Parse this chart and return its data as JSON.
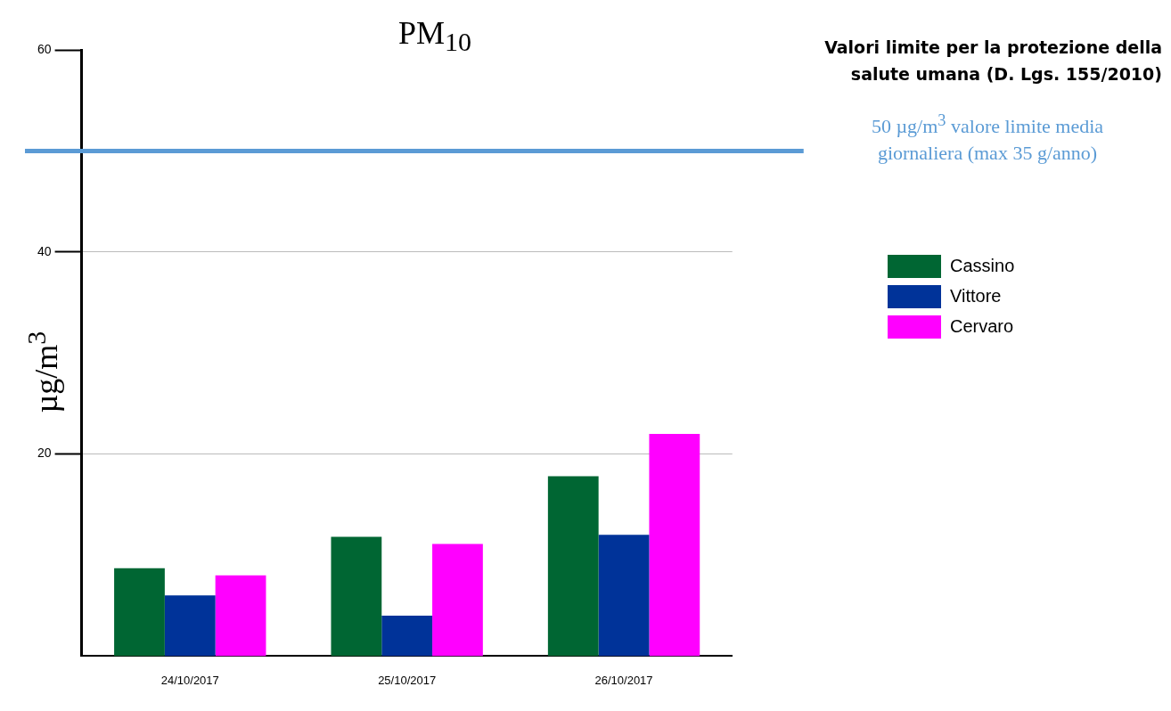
{
  "chart_data": {
    "type": "bar",
    "title": "PM$_{10}$",
    "ylabel": "µg/m$^{3}$",
    "categories": [
      "24/10/2017",
      "25/10/2017",
      "26/10/2017"
    ],
    "series": [
      {
        "name": "Cassino",
        "color": "#006633",
        "values": [
          8.7,
          11.8,
          17.8
        ]
      },
      {
        "name": "Vittore",
        "color": "#003399",
        "values": [
          6.0,
          4.0,
          12.0
        ]
      },
      {
        "name": "Cervaro",
        "color": "#ff00ff",
        "values": [
          8.0,
          11.1,
          22.0
        ]
      }
    ],
    "ylim": [
      0,
      60
    ],
    "yticks": [
      20,
      40,
      {
        "value": 50,
        "label": null
      },
      60
    ],
    "grid": "y",
    "legend": "right",
    "ref_lines": [
      {
        "axis": "y",
        "value": 50,
        "color": "#5b9bd5"
      }
    ],
    "annotations": [
      "Valori limite per la protezione della salute umana (D. Lgs. 155/2010)",
      "50 µg/m$^{3}$ valore limite media giornaliera (max 35 g/anno)"
    ]
  }
}
